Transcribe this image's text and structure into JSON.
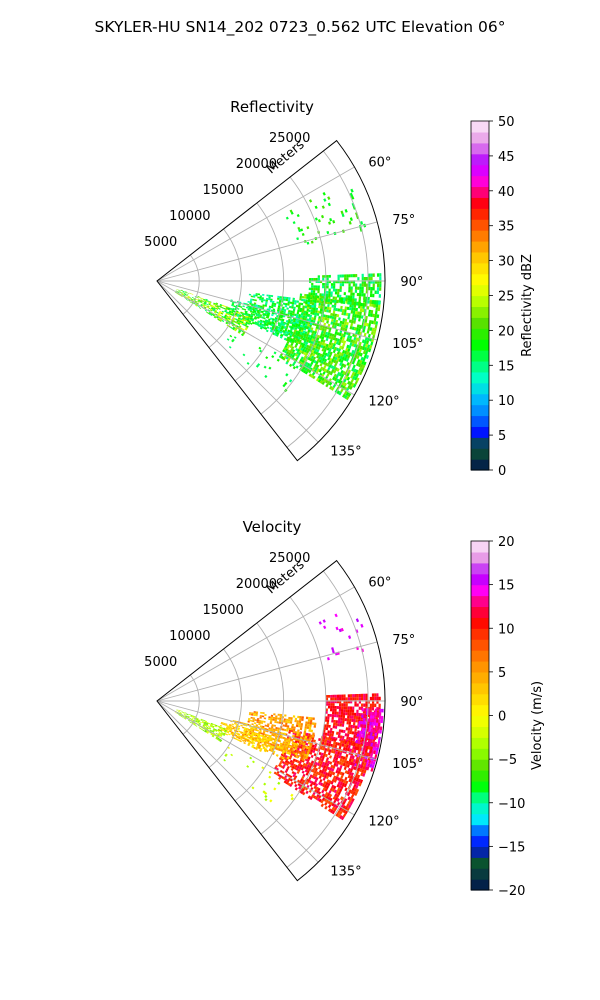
{
  "figure": {
    "title": "SKYLER-HU  SN14_202  0723_0.562 UTC Elevation 06°"
  },
  "chart_data": [
    {
      "type": "heatmap",
      "projection": "polar-sector",
      "title": "Reflectivity",
      "radial_axis_label": "Meters",
      "radial_ticks": [
        "5000",
        "10000",
        "15000",
        "20000",
        "25000"
      ],
      "radial_tick_values": [
        5000,
        10000,
        15000,
        20000,
        25000
      ],
      "rlim": [
        0,
        27000
      ],
      "azimuth_range_deg": [
        52,
        142
      ],
      "azimuth_ticks": [
        "60°",
        "75°",
        "90°",
        "105°",
        "120°",
        "135°"
      ],
      "azimuth_tick_values": [
        60,
        75,
        90,
        105,
        120,
        135
      ],
      "grid": true,
      "colorbar": {
        "label": "Reflectivity dBZ",
        "range": [
          0,
          50
        ],
        "ticks": [
          "0",
          "5",
          "10",
          "15",
          "20",
          "25",
          "30",
          "35",
          "40",
          "45",
          "50"
        ],
        "tick_values": [
          0,
          5,
          10,
          15,
          20,
          25,
          30,
          35,
          40,
          45,
          50
        ],
        "stops": [
          {
            "v": 0,
            "c": "#00144d"
          },
          {
            "v": 2,
            "c": "#0a3d3d"
          },
          {
            "v": 3.5,
            "c": "#0a5a2a"
          },
          {
            "v": 5,
            "c": "#0000ff"
          },
          {
            "v": 8,
            "c": "#0080ff"
          },
          {
            "v": 10,
            "c": "#00b4ff"
          },
          {
            "v": 13,
            "c": "#00ffd0"
          },
          {
            "v": 15,
            "c": "#00ff80"
          },
          {
            "v": 18,
            "c": "#00ff00"
          },
          {
            "v": 21,
            "c": "#55e000"
          },
          {
            "v": 24,
            "c": "#b4ff00"
          },
          {
            "v": 27,
            "c": "#ffff00"
          },
          {
            "v": 30,
            "c": "#ffd200"
          },
          {
            "v": 33,
            "c": "#ff8c00"
          },
          {
            "v": 36,
            "c": "#ff3c00"
          },
          {
            "v": 38,
            "c": "#ff0000"
          },
          {
            "v": 40,
            "c": "#ff0080"
          },
          {
            "v": 42,
            "c": "#ff00ff"
          },
          {
            "v": 44,
            "c": "#b400ff"
          },
          {
            "v": 47,
            "c": "#e696e6"
          },
          {
            "v": 50,
            "c": "#fff0fa"
          }
        ]
      },
      "field_regions": [
        {
          "az": [
            95,
            122
          ],
          "r": [
            17000,
            26500
          ],
          "value": [
            15,
            24
          ],
          "density": 0.72
        },
        {
          "az": [
            88,
            97
          ],
          "r": [
            18000,
            26500
          ],
          "value": [
            14,
            22
          ],
          "density": 0.6
        },
        {
          "az": [
            97,
            114
          ],
          "r": [
            11000,
            19000
          ],
          "value": [
            13,
            21
          ],
          "density": 0.55
        },
        {
          "az": [
            110,
            122
          ],
          "r": [
            2500,
            12000
          ],
          "value": [
            15,
            27
          ],
          "density": 0.62
        },
        {
          "az": [
            104,
            114
          ],
          "r": [
            9000,
            17000
          ],
          "value": [
            14,
            20
          ],
          "density": 0.45
        },
        {
          "az": [
            62,
            76
          ],
          "r": [
            17000,
            26000
          ],
          "value": [
            16,
            21
          ],
          "density": 0.07
        },
        {
          "az": [
            120,
            132
          ],
          "r": [
            10000,
            20000
          ],
          "value": [
            15,
            20
          ],
          "density": 0.05
        }
      ]
    },
    {
      "type": "heatmap",
      "projection": "polar-sector",
      "title": "Velocity",
      "radial_axis_label": "Meters",
      "radial_ticks": [
        "5000",
        "10000",
        "15000",
        "20000",
        "25000"
      ],
      "radial_tick_values": [
        5000,
        10000,
        15000,
        20000,
        25000
      ],
      "rlim": [
        0,
        27000
      ],
      "azimuth_range_deg": [
        52,
        142
      ],
      "azimuth_ticks": [
        "60°",
        "75°",
        "90°",
        "105°",
        "120°",
        "135°"
      ],
      "azimuth_tick_values": [
        60,
        75,
        90,
        105,
        120,
        135
      ],
      "grid": true,
      "colorbar": {
        "label": "Velocity (m/s)",
        "range": [
          -20,
          20
        ],
        "ticks": [
          "−20",
          "−15",
          "−10",
          "−5",
          "0",
          "5",
          "10",
          "15",
          "20"
        ],
        "tick_values": [
          -20,
          -15,
          -10,
          -5,
          0,
          5,
          10,
          15,
          20
        ],
        "stops": [
          {
            "v": -20,
            "c": "#00144d"
          },
          {
            "v": -18,
            "c": "#0a3d3d"
          },
          {
            "v": -16.5,
            "c": "#0a5a2a"
          },
          {
            "v": -15,
            "c": "#0000ff"
          },
          {
            "v": -13,
            "c": "#0080ff"
          },
          {
            "v": -12,
            "c": "#00e6ff"
          },
          {
            "v": -10,
            "c": "#00ffb4"
          },
          {
            "v": -8,
            "c": "#00ff00"
          },
          {
            "v": -6,
            "c": "#55e000"
          },
          {
            "v": -4,
            "c": "#96ff00"
          },
          {
            "v": -2,
            "c": "#d2ff00"
          },
          {
            "v": 0,
            "c": "#ffff00"
          },
          {
            "v": 3,
            "c": "#ffc800"
          },
          {
            "v": 6,
            "c": "#ff8c00"
          },
          {
            "v": 9,
            "c": "#ff3c00"
          },
          {
            "v": 11,
            "c": "#ff0000"
          },
          {
            "v": 13,
            "c": "#ff0080"
          },
          {
            "v": 14.5,
            "c": "#ff00ff"
          },
          {
            "v": 16,
            "c": "#b400ff"
          },
          {
            "v": 18,
            "c": "#e696e6"
          },
          {
            "v": 20,
            "c": "#fff0fa"
          }
        ]
      },
      "field_regions": [
        {
          "az": [
            88,
            102
          ],
          "r": [
            20000,
            26500
          ],
          "value": [
            9,
            13
          ],
          "density": 0.75
        },
        {
          "az": [
            92,
            108
          ],
          "r": [
            24000,
            26800
          ],
          "value": [
            12,
            16
          ],
          "density": 0.72
        },
        {
          "az": [
            102,
            122
          ],
          "r": [
            16000,
            26000
          ],
          "value": [
            8,
            13
          ],
          "density": 0.7
        },
        {
          "az": [
            96,
            112
          ],
          "r": [
            11000,
            19000
          ],
          "value": [
            2,
            8
          ],
          "density": 0.58
        },
        {
          "az": [
            108,
            116
          ],
          "r": [
            8000,
            14000
          ],
          "value": [
            0,
            4
          ],
          "density": 0.55
        },
        {
          "az": [
            112,
            122
          ],
          "r": [
            2500,
            9000
          ],
          "value": [
            -6,
            -1
          ],
          "density": 0.62
        },
        {
          "az": [
            104,
            114
          ],
          "r": [
            9000,
            17000
          ],
          "value": [
            1,
            6
          ],
          "density": 0.45
        },
        {
          "az": [
            64,
            76
          ],
          "r": [
            20000,
            26000
          ],
          "value": [
            14,
            16
          ],
          "density": 0.07
        },
        {
          "az": [
            120,
            132
          ],
          "r": [
            10000,
            20000
          ],
          "value": [
            -4,
            0
          ],
          "density": 0.05
        }
      ]
    }
  ]
}
